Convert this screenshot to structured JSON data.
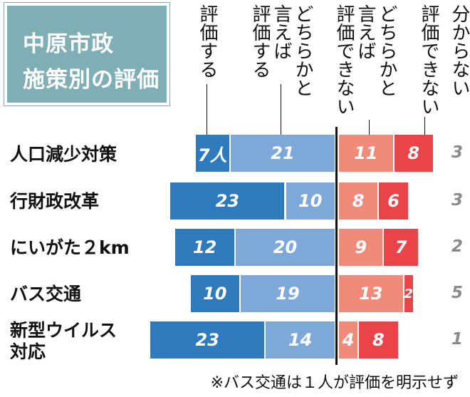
{
  "title": {
    "line1": "中原市政",
    "line2": "施策別の評価"
  },
  "columns": [
    "評価する",
    "どちらかと言えば評価する",
    "どちらかと言えば評価できない",
    "評価できない",
    "分からない"
  ],
  "column_heads": {
    "c1": [
      "評価する"
    ],
    "c2": [
      "どちらかと",
      "言えば",
      "評価する"
    ],
    "c3": [
      "どちらかと",
      "言えば",
      "評価できない"
    ],
    "c4": [
      "評価できない"
    ],
    "c5": [
      "分からない"
    ]
  },
  "footnote": "※バス交通は１人が評価を明示せず",
  "colors": {
    "positive_strong": "#2f79bd",
    "positive_weak": "#7ea8d8",
    "negative_weak": "#f08b7b",
    "negative_strong": "#e8444a",
    "unknown_text": "#8a8a8a",
    "title_bg": "#80aeb5"
  },
  "chart_data": {
    "type": "bar",
    "subtype": "diverging-stacked-horizontal",
    "categories": [
      "人口減少対策",
      "行財政改革",
      "にいがた２km",
      "バス交通",
      "新型ウイルス対応"
    ],
    "category_lines": [
      [
        "人口減少対策"
      ],
      [
        "行財政改革"
      ],
      [
        "にいがた２km"
      ],
      [
        "バス交通"
      ],
      [
        "新型ウイルス",
        "対応"
      ]
    ],
    "series": [
      {
        "name": "評価する",
        "values": [
          7,
          23,
          12,
          10,
          23
        ],
        "labels": [
          "7人",
          "23",
          "12",
          "10",
          "23"
        ]
      },
      {
        "name": "どちらかと言えば評価する",
        "values": [
          21,
          10,
          20,
          19,
          14
        ],
        "labels": [
          "21",
          "10",
          "20",
          "19",
          "14"
        ]
      },
      {
        "name": "どちらかと言えば評価できない",
        "values": [
          11,
          8,
          9,
          13,
          4
        ],
        "labels": [
          "11",
          "8",
          "9",
          "13",
          "4"
        ]
      },
      {
        "name": "評価できない",
        "values": [
          8,
          6,
          7,
          2,
          8
        ],
        "labels": [
          "8",
          "6",
          "7",
          "2",
          "8"
        ]
      },
      {
        "name": "分からない",
        "values": [
          3,
          3,
          2,
          5,
          1
        ],
        "labels": [
          "3",
          "3",
          "2",
          "5",
          "1"
        ]
      }
    ],
    "unit": "人"
  }
}
